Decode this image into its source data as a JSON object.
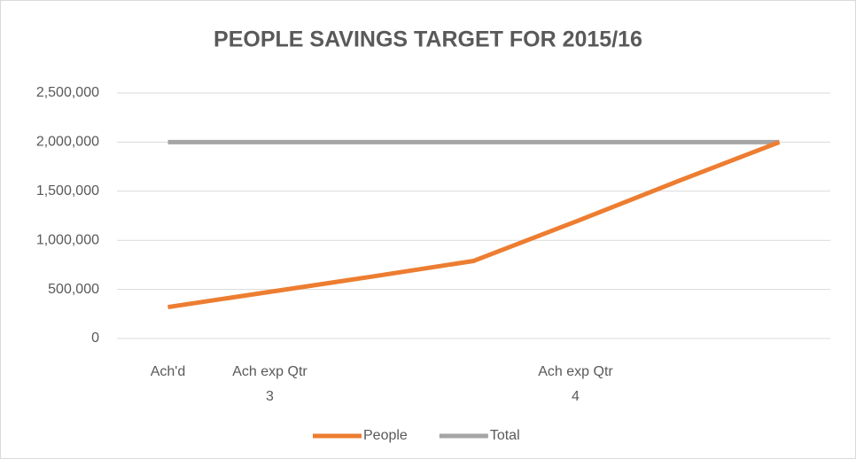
{
  "chart_data": {
    "type": "line",
    "title": "PEOPLE SAVINGS TARGET FOR 2015/16",
    "categories": [
      "Ach'd",
      "Ach exp Qtr 3",
      null,
      null,
      "Ach exp Qtr 4",
      null,
      null
    ],
    "series": [
      {
        "name": "People",
        "color": "#ed7d31",
        "values": [
          320000,
          475000,
          630000,
          790000,
          1190000,
          1600000,
          2000000
        ]
      },
      {
        "name": "Total",
        "color": "#a5a5a5",
        "values": [
          2000000,
          2000000,
          2000000,
          2000000,
          2000000,
          2000000,
          2000000
        ]
      }
    ],
    "ylim": [
      0,
      2500000
    ],
    "yticks": [
      0,
      {
        "value": 500000,
        "label": "500,000"
      },
      {
        "value": 1000000,
        "label": "1,000,000"
      },
      {
        "value": 1500000,
        "label": "1,500,000"
      },
      {
        "value": 2000000,
        "label": "2,000,000"
      },
      {
        "value": 2500000,
        "label": "2,500,000"
      }
    ],
    "grid": true,
    "legend": "bottom"
  }
}
